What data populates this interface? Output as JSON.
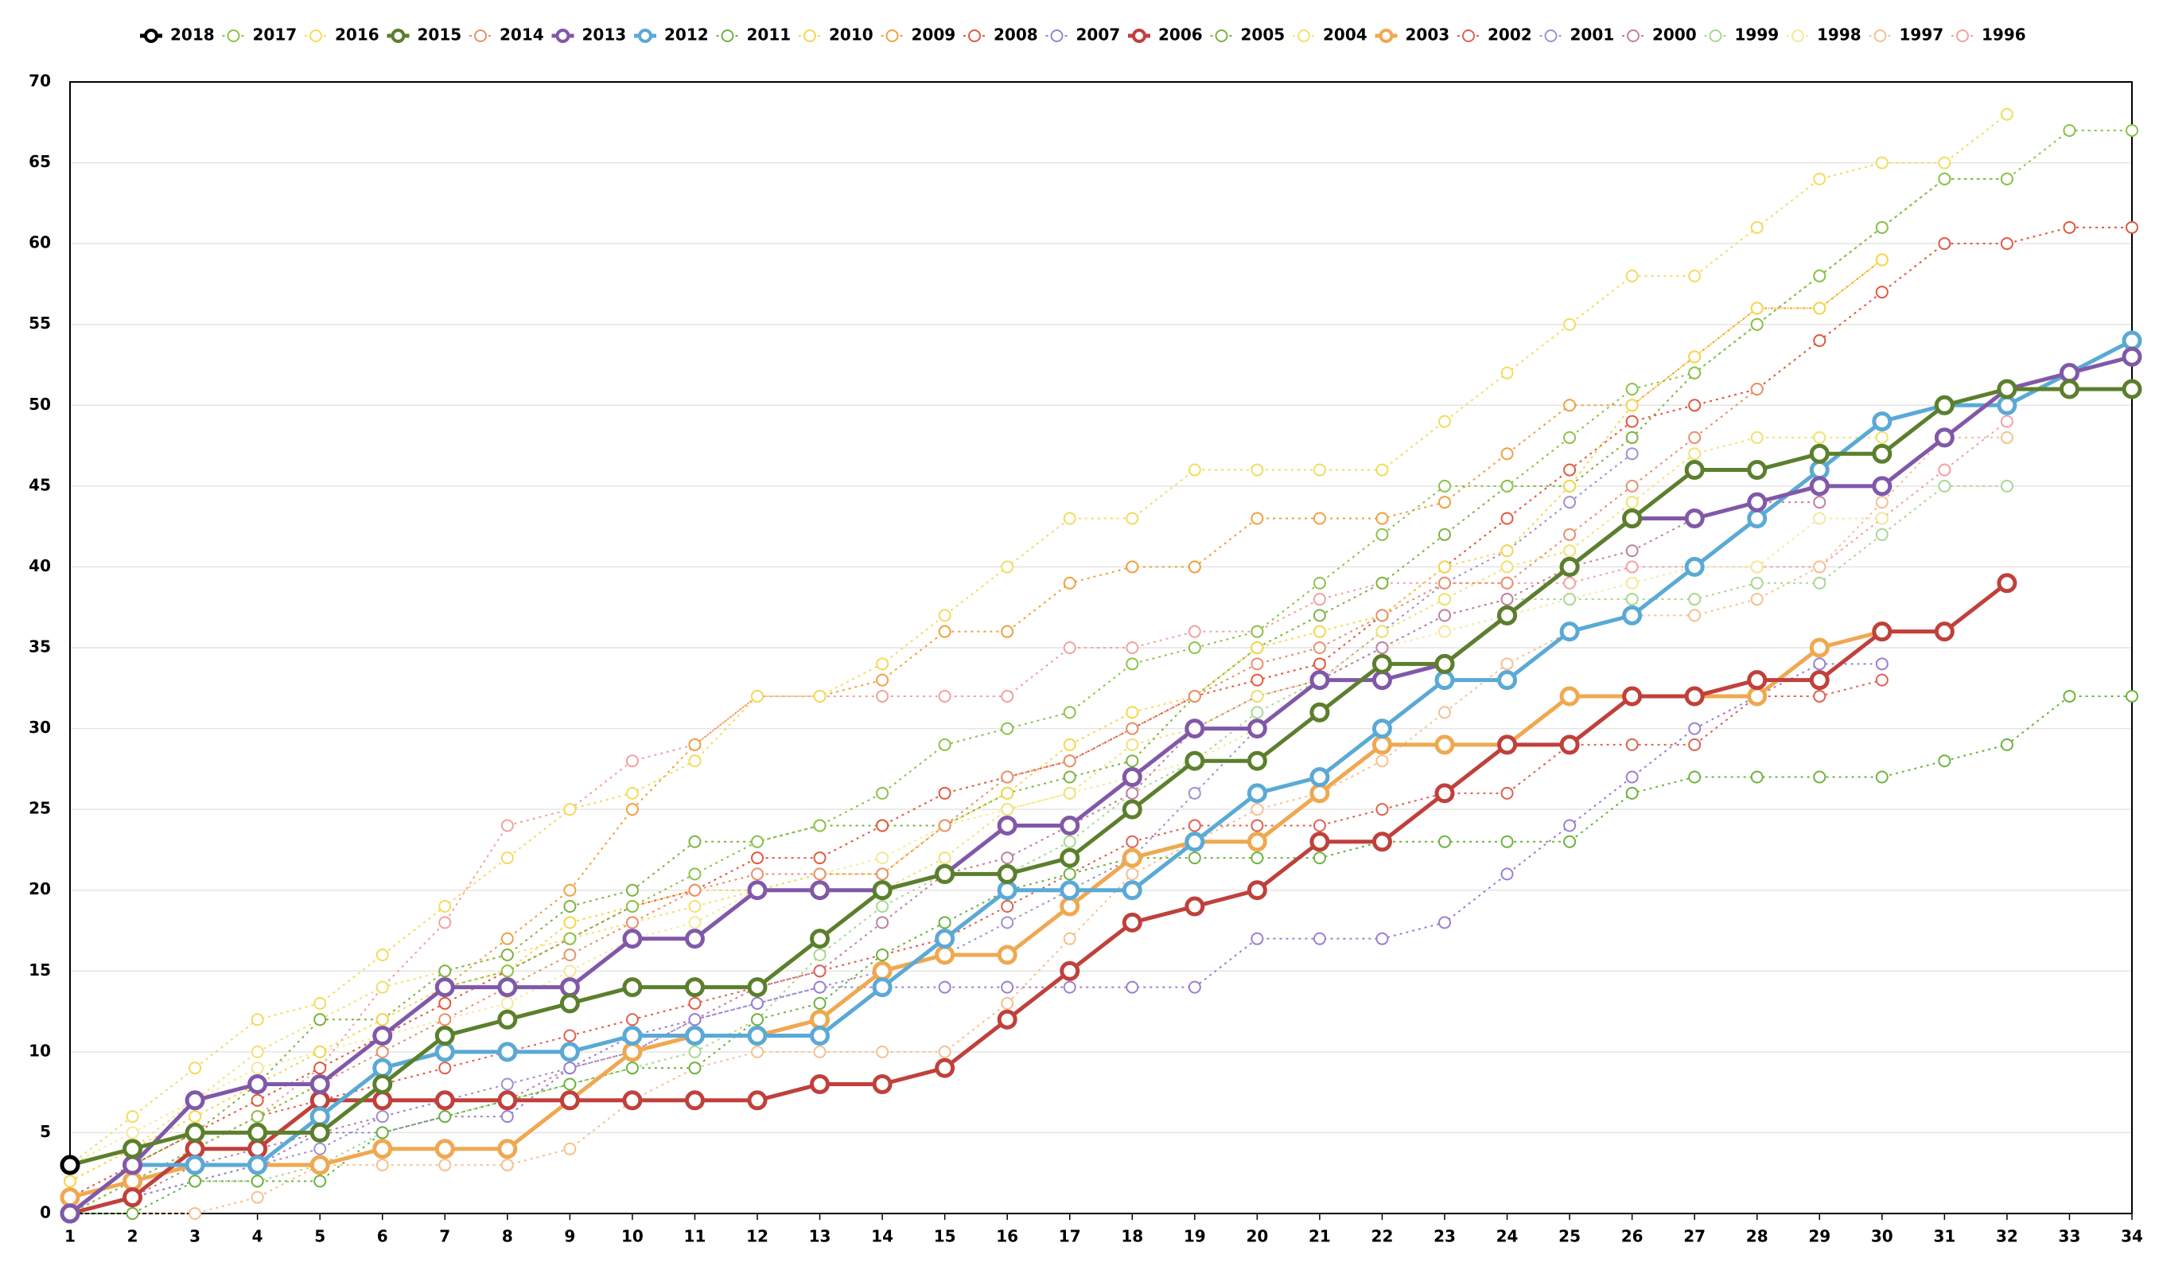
{
  "chart_data": {
    "type": "line",
    "x": [
      1,
      2,
      3,
      4,
      5,
      6,
      7,
      8,
      9,
      10,
      11,
      12,
      13,
      14,
      15,
      16,
      17,
      18,
      19,
      20,
      21,
      22,
      23,
      24,
      25,
      26,
      27,
      28,
      29,
      30,
      31,
      32,
      33,
      34
    ],
    "xlim": [
      1,
      34
    ],
    "ylim": [
      0,
      70
    ],
    "yticks": [
      0,
      5,
      10,
      15,
      20,
      25,
      30,
      35,
      40,
      45,
      50,
      55,
      60,
      65,
      70
    ],
    "grid": true,
    "legend": "top",
    "series": [
      {
        "name": "2018",
        "color": "#000000",
        "line_style": "solid",
        "values": [
          3,
          null,
          null,
          null,
          null,
          null,
          null,
          null,
          null,
          null,
          null,
          null,
          null,
          null,
          null,
          null,
          null,
          null,
          null,
          null,
          null,
          null,
          null,
          null,
          null,
          null,
          null,
          null,
          null,
          null,
          null,
          null,
          null,
          null
        ]
      },
      {
        "name": "2017",
        "color": "#8bc34a",
        "line_style": "dotted",
        "values": [
          0,
          2,
          4,
          6,
          8,
          11,
          14,
          15,
          17,
          19,
          21,
          23,
          24,
          26,
          29,
          30,
          31,
          34,
          35,
          36,
          39,
          42,
          45,
          45,
          48,
          51,
          52,
          55,
          58,
          61,
          64,
          64,
          67,
          67
        ]
      },
      {
        "name": "2016",
        "color": "#f2dc5d",
        "line_style": "dotted",
        "values": [
          3,
          6,
          9,
          12,
          13,
          16,
          19,
          22,
          25,
          26,
          28,
          32,
          32,
          34,
          37,
          40,
          43,
          43,
          46,
          46,
          46,
          46,
          49,
          52,
          55,
          58,
          58,
          61,
          64,
          65,
          65,
          68,
          null,
          null
        ]
      },
      {
        "name": "2015",
        "color": "#5b7f2c",
        "line_style": "solid",
        "values": [
          3,
          4,
          5,
          5,
          5,
          8,
          11,
          12,
          13,
          14,
          14,
          14,
          17,
          20,
          21,
          21,
          22,
          25,
          28,
          28,
          31,
          34,
          34,
          37,
          40,
          43,
          46,
          46,
          47,
          47,
          50,
          51,
          51,
          51
        ]
      },
      {
        "name": "2014",
        "color": "#e8906a",
        "line_style": "dotted",
        "values": [
          0,
          2,
          4,
          6,
          8,
          10,
          12,
          14,
          16,
          18,
          20,
          21,
          21,
          21,
          24,
          27,
          28,
          30,
          32,
          34,
          35,
          37,
          39,
          39,
          42,
          45,
          48,
          51,
          null,
          null,
          null,
          null,
          null,
          null
        ]
      },
      {
        "name": "2013",
        "color": "#8158a8",
        "line_style": "solid",
        "values": [
          0,
          3,
          7,
          8,
          8,
          11,
          14,
          14,
          14,
          17,
          17,
          20,
          20,
          20,
          21,
          24,
          24,
          27,
          30,
          30,
          33,
          33,
          34,
          37,
          40,
          43,
          43,
          44,
          45,
          45,
          48,
          51,
          52,
          53
        ]
      },
      {
        "name": "2012",
        "color": "#5aa9d6",
        "line_style": "solid",
        "values": [
          0,
          3,
          3,
          3,
          6,
          9,
          10,
          10,
          10,
          11,
          11,
          11,
          11,
          14,
          17,
          20,
          20,
          20,
          23,
          26,
          27,
          30,
          33,
          33,
          36,
          37,
          40,
          43,
          46,
          49,
          50,
          50,
          52,
          54
        ]
      },
      {
        "name": "2011",
        "color": "#6db33f",
        "line_style": "dotted",
        "values": [
          0,
          0,
          2,
          2,
          2,
          5,
          6,
          7,
          8,
          9,
          9,
          12,
          13,
          16,
          18,
          20,
          21,
          22,
          22,
          22,
          22,
          23,
          23,
          23,
          23,
          26,
          27,
          27,
          27,
          27,
          28,
          29,
          32,
          32
        ]
      },
      {
        "name": "2010",
        "color": "#f5d74a",
        "line_style": "dotted",
        "values": [
          2,
          4,
          6,
          8,
          10,
          12,
          14,
          15,
          18,
          19,
          20,
          20,
          21,
          21,
          24,
          26,
          29,
          31,
          32,
          35,
          36,
          37,
          40,
          41,
          45,
          50,
          53,
          56,
          56,
          59,
          null,
          null,
          null,
          null
        ]
      },
      {
        "name": "2009",
        "color": "#f0a040",
        "line_style": "dotted",
        "values": [
          0,
          2,
          4,
          6,
          8,
          11,
          14,
          17,
          20,
          25,
          29,
          32,
          32,
          33,
          36,
          36,
          39,
          40,
          40,
          43,
          43,
          43,
          44,
          47,
          50,
          50,
          53,
          56,
          56,
          59,
          null,
          null,
          null,
          null
        ]
      },
      {
        "name": "2008",
        "color": "#e2583e",
        "line_style": "dotted",
        "values": [
          1,
          3,
          5,
          7,
          9,
          11,
          13,
          15,
          17,
          19,
          20,
          22,
          22,
          24,
          26,
          27,
          28,
          30,
          32,
          33,
          34,
          37,
          40,
          43,
          46,
          49,
          50,
          51,
          54,
          57,
          60,
          60,
          61,
          61
        ]
      },
      {
        "name": "2007",
        "color": "#9a80d0",
        "line_style": "dotted",
        "values": [
          0,
          1,
          2,
          3,
          5,
          5,
          6,
          6,
          9,
          11,
          12,
          13,
          14,
          14,
          14,
          14,
          14,
          14,
          14,
          17,
          17,
          17,
          18,
          21,
          24,
          27,
          30,
          32,
          34,
          34,
          null,
          null,
          null,
          null
        ]
      },
      {
        "name": "2006",
        "color": "#c0403c",
        "line_style": "solid",
        "values": [
          0,
          1,
          4,
          4,
          7,
          7,
          7,
          7,
          7,
          7,
          7,
          7,
          8,
          8,
          9,
          12,
          15,
          18,
          19,
          20,
          23,
          23,
          26,
          29,
          29,
          32,
          32,
          33,
          33,
          36,
          36,
          39,
          null,
          null
        ]
      },
      {
        "name": "2005",
        "color": "#7cb342",
        "line_style": "dotted",
        "values": [
          0,
          3,
          5,
          8,
          12,
          12,
          15,
          16,
          19,
          20,
          23,
          23,
          24,
          24,
          24,
          26,
          27,
          28,
          32,
          35,
          37,
          39,
          42,
          45,
          45,
          48,
          52,
          55,
          58,
          61,
          64,
          64,
          null,
          null
        ]
      },
      {
        "name": "2004",
        "color": "#f3e070",
        "line_style": "dotted",
        "values": [
          2,
          4,
          7,
          10,
          12,
          14,
          15,
          16,
          17,
          18,
          19,
          20,
          20,
          20,
          22,
          25,
          26,
          29,
          30,
          32,
          33,
          36,
          38,
          40,
          41,
          44,
          47,
          48,
          48,
          48,
          null,
          null,
          null,
          null
        ]
      },
      {
        "name": "2003",
        "color": "#f0a850",
        "line_style": "solid",
        "values": [
          1,
          2,
          3,
          3,
          3,
          4,
          4,
          4,
          7,
          10,
          11,
          11,
          12,
          15,
          16,
          16,
          19,
          22,
          23,
          23,
          26,
          29,
          29,
          29,
          32,
          32,
          32,
          32,
          35,
          36,
          null,
          null,
          null,
          null
        ]
      },
      {
        "name": "2002",
        "color": "#e06050",
        "line_style": "dotted",
        "values": [
          0,
          2,
          4,
          6,
          7,
          8,
          9,
          10,
          11,
          12,
          13,
          14,
          15,
          16,
          17,
          19,
          21,
          23,
          24,
          24,
          24,
          25,
          26,
          26,
          29,
          29,
          29,
          32,
          32,
          33,
          null,
          null,
          null,
          null
        ]
      },
      {
        "name": "2001",
        "color": "#a090d0",
        "line_style": "dotted",
        "values": [
          0,
          1,
          2,
          3,
          4,
          6,
          7,
          8,
          9,
          10,
          12,
          13,
          14,
          15,
          16,
          18,
          20,
          22,
          26,
          30,
          33,
          36,
          39,
          41,
          44,
          47,
          null,
          null,
          null,
          null,
          null,
          null,
          null,
          null
        ]
      },
      {
        "name": "2000",
        "color": "#c080a0",
        "line_style": "dotted",
        "values": [
          0,
          1,
          3,
          4,
          5,
          6,
          7,
          7,
          9,
          10,
          12,
          14,
          15,
          18,
          21,
          22,
          24,
          26,
          30,
          32,
          33,
          35,
          37,
          38,
          40,
          41,
          43,
          44,
          44,
          null,
          null,
          null,
          null,
          null
        ]
      },
      {
        "name": "1999",
        "color": "#a8d890",
        "line_style": "dotted",
        "values": [
          0,
          1,
          2,
          2,
          3,
          5,
          6,
          7,
          8,
          9,
          10,
          12,
          16,
          19,
          21,
          21,
          23,
          26,
          28,
          31,
          33,
          35,
          37,
          38,
          38,
          38,
          38,
          39,
          39,
          42,
          45,
          45,
          null,
          null
        ]
      },
      {
        "name": "1998",
        "color": "#f5e89a",
        "line_style": "dotted",
        "values": [
          3,
          5,
          7,
          9,
          10,
          11,
          12,
          13,
          15,
          17,
          18,
          20,
          21,
          22,
          24,
          25,
          26,
          27,
          28,
          30,
          33,
          35,
          36,
          37,
          38,
          39,
          40,
          40,
          43,
          43,
          null,
          null,
          null,
          null
        ]
      },
      {
        "name": "1997",
        "color": "#f5c090",
        "line_style": "dotted",
        "values": [
          0,
          0,
          0,
          1,
          3,
          3,
          3,
          3,
          4,
          7,
          9,
          10,
          10,
          10,
          10,
          13,
          17,
          21,
          23,
          25,
          26,
          28,
          31,
          34,
          36,
          37,
          37,
          38,
          40,
          44,
          48,
          48,
          null,
          null
        ]
      },
      {
        "name": "1996",
        "color": "#f5a0a0",
        "line_style": "dotted",
        "values": [
          0,
          2,
          4,
          6,
          9,
          14,
          18,
          24,
          25,
          28,
          29,
          32,
          32,
          32,
          32,
          32,
          35,
          35,
          36,
          36,
          38,
          39,
          39,
          39,
          39,
          40,
          40,
          40,
          40,
          43,
          46,
          49,
          null,
          null
        ]
      }
    ]
  }
}
